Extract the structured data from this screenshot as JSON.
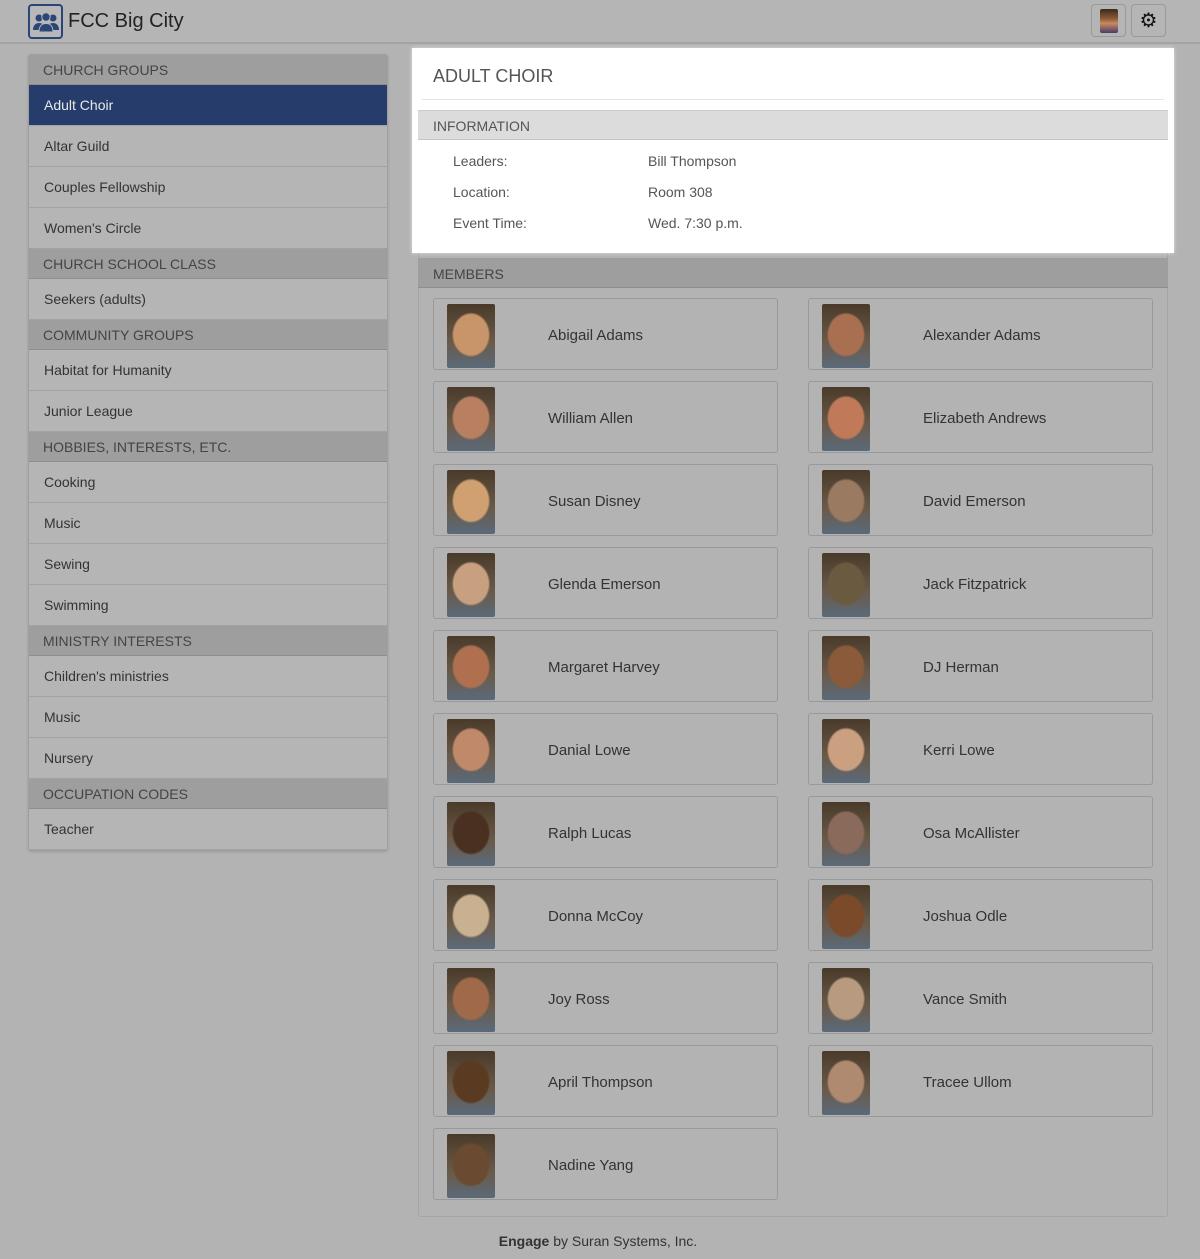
{
  "app": {
    "title": "FCC Big City",
    "logo_icon": "people-group-icon",
    "accent": "#263d6b"
  },
  "toolbar": {
    "avatar_icon": "user-avatar",
    "settings_icon": "gear-icon"
  },
  "sidebar": {
    "sections": [
      {
        "header": "CHURCH GROUPS",
        "items": [
          "Adult Choir",
          "Altar Guild",
          "Couples Fellowship",
          "Women's Circle"
        ]
      },
      {
        "header": "CHURCH SCHOOL CLASS",
        "items": [
          "Seekers (adults)"
        ]
      },
      {
        "header": "COMMUNITY GROUPS",
        "items": [
          "Habitat for Humanity",
          "Junior League"
        ]
      },
      {
        "header": "HOBBIES, INTERESTS, ETC.",
        "items": [
          "Cooking",
          "Music",
          "Sewing",
          "Swimming"
        ]
      },
      {
        "header": "MINISTRY INTERESTS",
        "items": [
          "Children's ministries",
          "Music",
          "Nursery"
        ]
      },
      {
        "header": "OCCUPATION CODES",
        "items": [
          "Teacher"
        ]
      }
    ],
    "active": "Adult Choir"
  },
  "group": {
    "title": "ADULT CHOIR",
    "info_header": "INFORMATION",
    "info": [
      {
        "label": "Leaders:",
        "value": "Bill Thompson"
      },
      {
        "label": "Location:",
        "value": "Room 308"
      },
      {
        "label": "Event Time:",
        "value": "Wed. 7:30 p.m."
      }
    ],
    "members_header": "MEMBERS",
    "members": [
      "Abigail Adams",
      "Alexander Adams",
      "William Allen",
      "Elizabeth Andrews",
      "Susan Disney",
      "David Emerson",
      "Glenda Emerson",
      "Jack Fitzpatrick",
      "Margaret Harvey",
      "DJ Herman",
      "Danial Lowe",
      "Kerri Lowe",
      "Ralph Lucas",
      "Osa McAllister",
      "Donna McCoy",
      "Joshua Odle",
      "Joy Ross",
      "Vance Smith",
      "April Thompson",
      "Tracee Ullom",
      "Nadine Yang"
    ]
  },
  "footer": {
    "brand": "Engage",
    "text": " by Suran Systems, Inc."
  }
}
